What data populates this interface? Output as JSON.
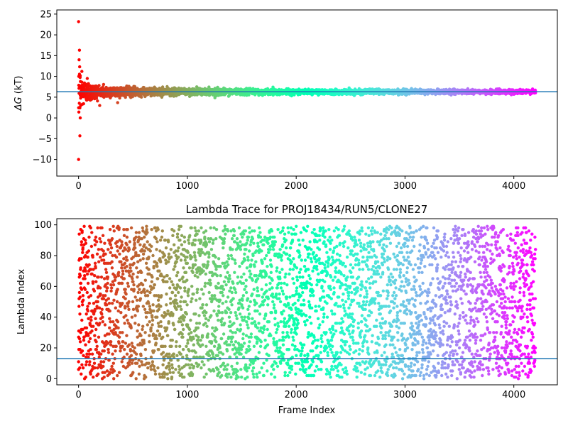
{
  "chart_data": [
    {
      "type": "scatter",
      "title": "",
      "xlabel": "",
      "ylabel": "ΔG (kT)",
      "ylabel_symbol": "ΔG",
      "ylabel_unit": " (kT)",
      "xlim": [
        -200,
        4400
      ],
      "ylim": [
        -14,
        26
      ],
      "xticks": [
        0,
        1000,
        2000,
        3000,
        4000
      ],
      "yticks": [
        -10,
        -5,
        0,
        5,
        10,
        15,
        20,
        25
      ],
      "colormap": "rainbow (red at start → violet at end)",
      "n_frames": 4200,
      "reference_line": {
        "y": 6.3,
        "color": "#1f77b4"
      },
      "series": [
        {
          "values_sample": [
            {
              "x": 0,
              "y": -10.0
            },
            {
              "x": 2,
              "y": 10.0
            },
            {
              "x": 5,
              "y": 14.0
            },
            {
              "x": 8,
              "y": 16.3
            },
            {
              "x": 10,
              "y": 12.3
            },
            {
              "x": 12,
              "y": -4.3
            },
            {
              "x": 15,
              "y": 0.0
            },
            {
              "x": 20,
              "y": 3.0
            },
            {
              "x": 30,
              "y": 11.2
            },
            {
              "x": 50,
              "y": 8.0
            },
            {
              "x": 80,
              "y": 9.5
            },
            {
              "x": 120,
              "y": 4.5
            },
            {
              "x": 200,
              "y": 5.5
            },
            {
              "x": 400,
              "y": 6.8
            },
            {
              "x": 600,
              "y": 6.0
            },
            {
              "x": 1000,
              "y": 6.4
            },
            {
              "x": 1500,
              "y": 6.5
            },
            {
              "x": 2000,
              "y": 6.3
            },
            {
              "x": 3000,
              "y": 6.3
            },
            {
              "x": 4200,
              "y": 6.3
            }
          ]
        }
      ]
    },
    {
      "type": "scatter",
      "title": "Lambda Trace for PROJ18434/RUN5/CLONE27",
      "xlabel": "Frame Index",
      "ylabel": "Lambda Index",
      "xlim": [
        -200,
        4400
      ],
      "ylim": [
        -4,
        104
      ],
      "xticks": [
        0,
        1000,
        2000,
        3000,
        4000
      ],
      "yticks": [
        0,
        20,
        40,
        60,
        80,
        100
      ],
      "colormap": "rainbow (red at start → violet at end)",
      "n_frames": 4200,
      "lambda_range": [
        0,
        99
      ],
      "reference_line": {
        "y": 13,
        "color": "#1f77b4"
      },
      "series": [
        {
          "values_sample": [
            {
              "x": 0,
              "y": 6
            },
            {
              "x": 5,
              "y": 52
            },
            {
              "x": 10,
              "y": 68
            },
            {
              "x": 20,
              "y": 97
            },
            {
              "x": 60,
              "y": 33
            },
            {
              "x": 150,
              "y": 90
            },
            {
              "x": 500,
              "y": 12
            },
            {
              "x": 1000,
              "y": 75
            },
            {
              "x": 1500,
              "y": 40
            },
            {
              "x": 2000,
              "y": 55
            },
            {
              "x": 2500,
              "y": 48
            },
            {
              "x": 3000,
              "y": 88
            },
            {
              "x": 3500,
              "y": 20
            },
            {
              "x": 4000,
              "y": 62
            },
            {
              "x": 4190,
              "y": 8
            }
          ]
        }
      ]
    }
  ]
}
